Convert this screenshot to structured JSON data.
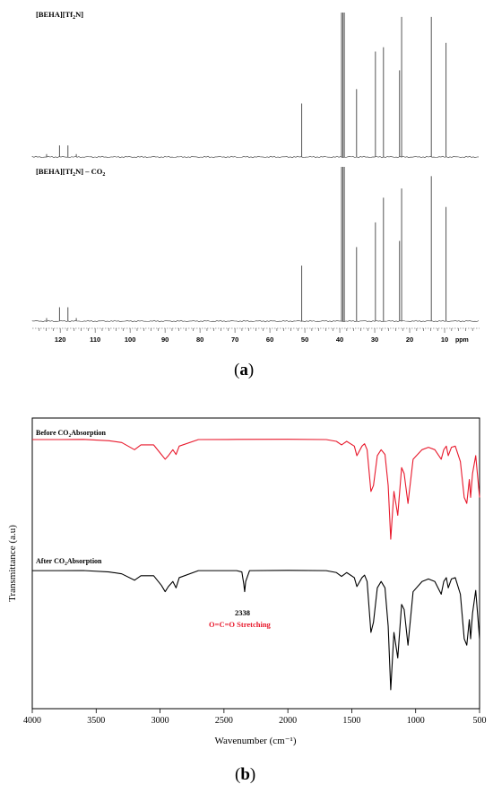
{
  "panels": {
    "a": {
      "caption": "(a)",
      "caption_letter": "a",
      "chart_data": {
        "type": "line",
        "xlabel": "ppm",
        "xlim": [
          128,
          0
        ],
        "x_ticks": [
          120,
          110,
          100,
          90,
          80,
          70,
          60,
          50,
          40,
          30,
          20,
          10
        ],
        "series": [
          {
            "name": "[BEHA][Tf2N]",
            "name_parts": [
              "[BEHA][Tf",
              "2",
              "N]"
            ],
            "peaks": [
              {
                "x": 123.9,
                "h": 0.02
              },
              {
                "x": 120.2,
                "h": 0.08
              },
              {
                "x": 117.8,
                "h": 0.08
              },
              {
                "x": 115.4,
                "h": 0.02
              },
              {
                "x": 50.9,
                "h": 0.37
              },
              {
                "x": 39.5,
                "h": 1.0
              },
              {
                "x": 39.1,
                "h": 1.0
              },
              {
                "x": 38.7,
                "h": 1.0
              },
              {
                "x": 35.2,
                "h": 0.47
              },
              {
                "x": 29.8,
                "h": 0.73
              },
              {
                "x": 27.5,
                "h": 0.76
              },
              {
                "x": 22.9,
                "h": 0.6
              },
              {
                "x": 22.3,
                "h": 0.97
              },
              {
                "x": 13.8,
                "h": 0.97
              },
              {
                "x": 9.6,
                "h": 0.79
              }
            ]
          },
          {
            "name": "[BEHA][Tf2N] – CO2",
            "name_parts": [
              "[BEHA][Tf",
              "2",
              "N] – CO",
              "2"
            ],
            "peaks": [
              {
                "x": 123.9,
                "h": 0.02
              },
              {
                "x": 120.2,
                "h": 0.09
              },
              {
                "x": 117.8,
                "h": 0.09
              },
              {
                "x": 115.4,
                "h": 0.02
              },
              {
                "x": 50.9,
                "h": 0.36
              },
              {
                "x": 39.5,
                "h": 1.0
              },
              {
                "x": 39.1,
                "h": 1.0
              },
              {
                "x": 38.7,
                "h": 1.0
              },
              {
                "x": 35.2,
                "h": 0.48
              },
              {
                "x": 29.8,
                "h": 0.64
              },
              {
                "x": 27.5,
                "h": 0.8
              },
              {
                "x": 22.9,
                "h": 0.52
              },
              {
                "x": 22.3,
                "h": 0.86
              },
              {
                "x": 13.8,
                "h": 0.94
              },
              {
                "x": 9.6,
                "h": 0.74
              }
            ]
          }
        ]
      }
    },
    "b": {
      "caption": "(b)",
      "caption_letter": "b",
      "chart_data": {
        "type": "line",
        "xlabel": "Wavenumber (cm⁻¹)",
        "ylabel": "Transmittance (a.u)",
        "xlim": [
          4000,
          500
        ],
        "x_ticks": [
          4000,
          3500,
          3000,
          2500,
          2000,
          1500,
          1000,
          500
        ],
        "annotation": {
          "x": 2338,
          "label": "2338",
          "text": "O=C=O Stretching",
          "color": "#e8192c"
        },
        "series": [
          {
            "name": "Before CO2Absorption",
            "name_parts": [
              "Before CO",
              "2",
              "Absorption"
            ],
            "color": "#e8192c",
            "points": [
              [
                4000,
                0.985
              ],
              [
                3800,
                0.985
              ],
              [
                3600,
                0.986
              ],
              [
                3400,
                0.975
              ],
              [
                3300,
                0.96
              ],
              [
                3200,
                0.9
              ],
              [
                3150,
                0.94
              ],
              [
                3050,
                0.94
              ],
              [
                2990,
                0.86
              ],
              [
                2960,
                0.82
              ],
              [
                2935,
                0.85
              ],
              [
                2900,
                0.9
              ],
              [
                2875,
                0.86
              ],
              [
                2850,
                0.93
              ],
              [
                2700,
                0.985
              ],
              [
                2400,
                0.986
              ],
              [
                2000,
                0.987
              ],
              [
                1700,
                0.985
              ],
              [
                1620,
                0.97
              ],
              [
                1580,
                0.94
              ],
              [
                1540,
                0.97
              ],
              [
                1480,
                0.93
              ],
              [
                1460,
                0.85
              ],
              [
                1420,
                0.93
              ],
              [
                1400,
                0.95
              ],
              [
                1380,
                0.9
              ],
              [
                1350,
                0.55
              ],
              [
                1330,
                0.6
              ],
              [
                1300,
                0.85
              ],
              [
                1270,
                0.9
              ],
              [
                1240,
                0.86
              ],
              [
                1215,
                0.6
              ],
              [
                1195,
                0.15
              ],
              [
                1170,
                0.55
              ],
              [
                1140,
                0.35
              ],
              [
                1110,
                0.75
              ],
              [
                1090,
                0.7
              ],
              [
                1060,
                0.45
              ],
              [
                1020,
                0.82
              ],
              [
                950,
                0.9
              ],
              [
                900,
                0.92
              ],
              [
                850,
                0.9
              ],
              [
                800,
                0.82
              ],
              [
                780,
                0.9
              ],
              [
                760,
                0.93
              ],
              [
                745,
                0.85
              ],
              [
                720,
                0.92
              ],
              [
                690,
                0.93
              ],
              [
                650,
                0.8
              ],
              [
                620,
                0.5
              ],
              [
                600,
                0.45
              ],
              [
                580,
                0.65
              ],
              [
                570,
                0.5
              ],
              [
                555,
                0.7
              ],
              [
                530,
                0.85
              ],
              [
                500,
                0.5
              ]
            ]
          },
          {
            "name": "After CO2Absorption",
            "name_parts": [
              "After CO",
              "2",
              "Absorption"
            ],
            "color": "#000000",
            "points": [
              [
                4000,
                0.985
              ],
              [
                3800,
                0.985
              ],
              [
                3600,
                0.986
              ],
              [
                3400,
                0.975
              ],
              [
                3300,
                0.96
              ],
              [
                3200,
                0.91
              ],
              [
                3150,
                0.945
              ],
              [
                3050,
                0.945
              ],
              [
                2990,
                0.87
              ],
              [
                2960,
                0.82
              ],
              [
                2935,
                0.86
              ],
              [
                2900,
                0.9
              ],
              [
                2875,
                0.85
              ],
              [
                2850,
                0.93
              ],
              [
                2700,
                0.985
              ],
              [
                2400,
                0.985
              ],
              [
                2360,
                0.975
              ],
              [
                2345,
                0.88
              ],
              [
                2338,
                0.82
              ],
              [
                2330,
                0.9
              ],
              [
                2300,
                0.985
              ],
              [
                2000,
                0.987
              ],
              [
                1700,
                0.985
              ],
              [
                1620,
                0.97
              ],
              [
                1580,
                0.94
              ],
              [
                1540,
                0.97
              ],
              [
                1480,
                0.93
              ],
              [
                1460,
                0.86
              ],
              [
                1420,
                0.93
              ],
              [
                1400,
                0.95
              ],
              [
                1380,
                0.9
              ],
              [
                1350,
                0.5
              ],
              [
                1330,
                0.58
              ],
              [
                1300,
                0.85
              ],
              [
                1270,
                0.9
              ],
              [
                1240,
                0.85
              ],
              [
                1215,
                0.55
              ],
              [
                1195,
                0.05
              ],
              [
                1170,
                0.5
              ],
              [
                1140,
                0.3
              ],
              [
                1110,
                0.72
              ],
              [
                1090,
                0.68
              ],
              [
                1060,
                0.4
              ],
              [
                1020,
                0.82
              ],
              [
                950,
                0.9
              ],
              [
                900,
                0.92
              ],
              [
                850,
                0.9
              ],
              [
                800,
                0.8
              ],
              [
                780,
                0.9
              ],
              [
                760,
                0.93
              ],
              [
                745,
                0.85
              ],
              [
                720,
                0.92
              ],
              [
                690,
                0.93
              ],
              [
                650,
                0.8
              ],
              [
                620,
                0.45
              ],
              [
                600,
                0.4
              ],
              [
                580,
                0.6
              ],
              [
                570,
                0.45
              ],
              [
                555,
                0.65
              ],
              [
                530,
                0.83
              ],
              [
                500,
                0.45
              ]
            ]
          }
        ]
      }
    }
  }
}
